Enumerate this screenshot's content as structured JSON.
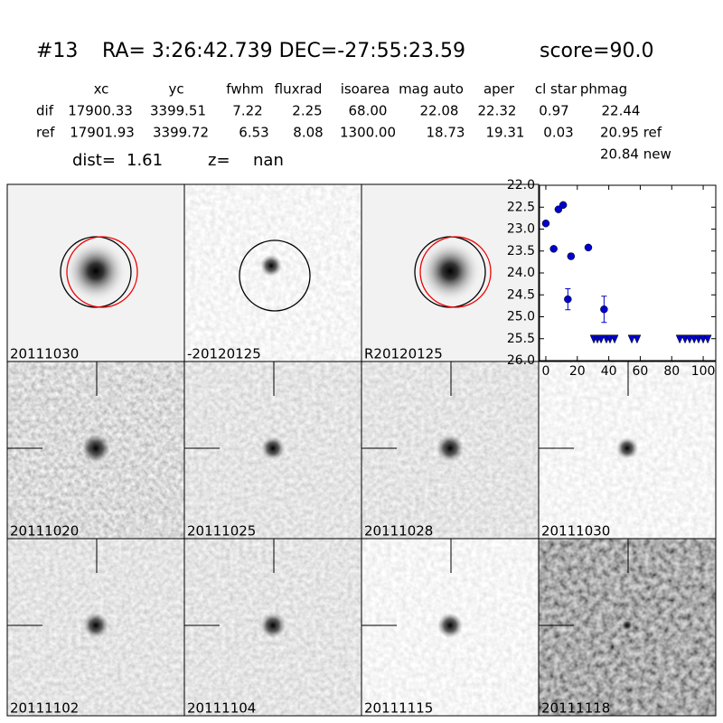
{
  "header": {
    "id": "#13",
    "coords": "RA= 3:26:42.739 DEC=-27:55:23.59",
    "score": "score=90.0"
  },
  "table": {
    "columns": [
      "xc",
      "yc",
      "fwhm",
      "fluxrad",
      "isoarea",
      "mag auto",
      "aper",
      "cl star",
      "phmag"
    ],
    "rows": [
      {
        "label": "dif",
        "cells": [
          "17900.33",
          "3399.51",
          "7.22",
          "2.25",
          "68.00",
          "22.08",
          "22.32",
          "0.97",
          "22.44"
        ]
      },
      {
        "label": "ref",
        "cells": [
          "17901.93",
          "3399.72",
          "6.53",
          "8.08",
          "1300.00",
          "18.73",
          "19.31",
          "0.03",
          "20.95 ref"
        ]
      }
    ],
    "extra": "20.84 new"
  },
  "dist": {
    "dist_label": "dist=",
    "dist": "1.61",
    "z_label": "z=",
    "z": "nan"
  },
  "stamps": [
    {
      "label": "20111030"
    },
    {
      "label": "-20120125"
    },
    {
      "label": "R20120125"
    },
    {
      "label": "20111020"
    },
    {
      "label": "20111025"
    },
    {
      "label": "20111028"
    },
    {
      "label": "20111030",
      "label_color": "#ff0000"
    },
    {
      "label": "20111102"
    },
    {
      "label": "20111104"
    },
    {
      "label": "20111115"
    },
    {
      "label": "20111118"
    }
  ],
  "chart_data": {
    "type": "scatter",
    "xlim": [
      -4,
      108
    ],
    "ylim": [
      26.0,
      22.0
    ],
    "xticks": [
      0,
      20,
      40,
      60,
      80,
      100
    ],
    "yticks": [
      {
        "value": 22.0,
        "label": "22.0"
      },
      {
        "value": 22.5,
        "label": "22.5"
      },
      {
        "value": 23.0,
        "label": "23.0"
      },
      {
        "value": 23.5,
        "label": "23.5"
      },
      {
        "value": 24.0,
        "label": "24.0"
      },
      {
        "value": 24.5,
        "label": "24.5"
      },
      {
        "value": 25.0,
        "label": "25.0"
      },
      {
        "value": 25.5,
        "label": "25.5"
      },
      {
        "value": 26.0,
        "label": "26.0"
      }
    ],
    "series": [
      {
        "color": "#0000cc",
        "marker": "o",
        "x": [
          0,
          5,
          8,
          11,
          14,
          16,
          27,
          37
        ],
        "values": [
          22.87,
          23.45,
          22.55,
          22.45,
          24.6,
          23.62,
          23.42,
          24.83
        ],
        "errors": [
          0.04,
          0.04,
          0.04,
          0.04,
          0.24,
          0.06,
          0.04,
          0.3
        ]
      },
      {
        "color": "#0000cc",
        "marker": "v",
        "x": [
          30.5,
          32.8,
          35.1,
          38.5,
          40.8,
          43.7,
          54.6,
          58,
          85.1,
          88.5,
          91.4,
          94.3,
          97.1,
          100,
          102.9
        ],
        "values": [
          25.5,
          25.5,
          25.5,
          25.5,
          25.5,
          25.5,
          25.5,
          25.5,
          25.5,
          25.5,
          25.5,
          25.5,
          25.5,
          25.5,
          25.5
        ]
      }
    ]
  }
}
